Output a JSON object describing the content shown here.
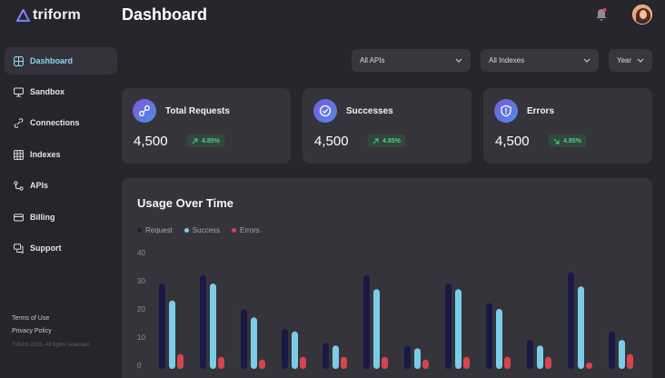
{
  "app": {
    "name": "triform"
  },
  "header": {
    "title": "Dashboard"
  },
  "sidebar": {
    "items": [
      {
        "label": "Dashboard",
        "icon": "grid-icon",
        "active": true
      },
      {
        "label": "Sandbox",
        "icon": "monitor-icon",
        "active": false
      },
      {
        "label": "Connections",
        "icon": "link-icon",
        "active": false
      },
      {
        "label": "Indexes",
        "icon": "table-icon",
        "active": false
      },
      {
        "label": "APIs",
        "icon": "api-icon",
        "active": false
      },
      {
        "label": "Billing",
        "icon": "card-icon",
        "active": false
      },
      {
        "label": "Support",
        "icon": "chat-icon",
        "active": false
      }
    ],
    "footer": {
      "terms": "Terms of Use",
      "privacy": "Privacy Policy",
      "copyright": "Triform 2023. All rights reserved."
    }
  },
  "filters": {
    "apis": "All APIs",
    "indexes": "All Indexes",
    "period": "Year"
  },
  "cards": [
    {
      "title": "Total Requests",
      "value": "4,500",
      "change": "4.85%",
      "icon": "link-icon",
      "trend": "up"
    },
    {
      "title": "Successes",
      "value": "4,500",
      "change": "4.85%",
      "icon": "check-circle-icon",
      "trend": "up"
    },
    {
      "title": "Errors",
      "value": "4,500",
      "change": "4.85%",
      "icon": "shield-icon",
      "trend": "down"
    }
  ],
  "colors": {
    "request": "#1a1945",
    "success": "#79cde9",
    "errors": "#d9434d",
    "accent": "#8fd3ec",
    "positive": "#53c98a"
  },
  "chart_data": {
    "type": "bar",
    "title": "Usage Over Time",
    "ylim": [
      0,
      40
    ],
    "yticks": [
      "0",
      "10",
      "20",
      "30",
      "40"
    ],
    "series": [
      {
        "name": "Request",
        "values": [
          29,
          32,
          20,
          13,
          8,
          32,
          7,
          29,
          22,
          9,
          33,
          12
        ]
      },
      {
        "name": "Success",
        "values": [
          23,
          29,
          17,
          12,
          7,
          27,
          6,
          27,
          20,
          7,
          28,
          9
        ]
      },
      {
        "name": "Errors",
        "values": [
          4,
          3,
          2,
          3,
          3,
          3,
          2,
          3,
          3,
          3,
          1,
          4
        ]
      }
    ]
  }
}
